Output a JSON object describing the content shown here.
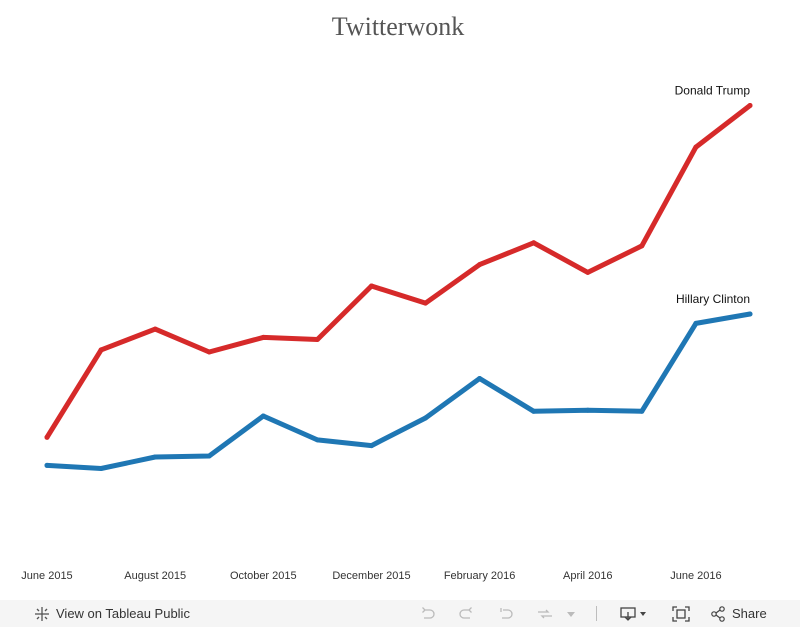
{
  "chart_data": {
    "type": "line",
    "title": "Twitterwonk",
    "xlabel": "",
    "ylabel": "",
    "x_ticks": [
      "June 2015",
      "August 2015",
      "October 2015",
      "December 2015",
      "February 2016",
      "April 2016",
      "June 2016"
    ],
    "x": [
      "2015-06",
      "2015-07",
      "2015-08",
      "2015-09",
      "2015-10",
      "2015-11",
      "2015-12",
      "2016-01",
      "2016-02",
      "2016-03",
      "2016-04",
      "2016-05",
      "2016-06",
      "2016-07"
    ],
    "ylim": [
      0,
      100
    ],
    "y_axis_visible": false,
    "grid": false,
    "legend": "labels at line ends",
    "series": [
      {
        "name": "Donald Trump",
        "color": "#d62a2a",
        "values": [
          23.6,
          40.4,
          44.4,
          40.0,
          42.8,
          42.4,
          52.7,
          49.4,
          56.8,
          61.0,
          55.3,
          60.4,
          79.4,
          87.4
        ]
      },
      {
        "name": "Hillary Clinton",
        "color": "#1f77b4",
        "values": [
          18.2,
          17.6,
          19.8,
          20.0,
          27.7,
          23.1,
          22.0,
          27.3,
          34.9,
          28.6,
          28.8,
          28.6,
          45.5,
          47.3
        ]
      }
    ]
  },
  "toolbar": {
    "view_label": "View on Tableau Public",
    "share_label": "Share",
    "icons": [
      "tableau-logo-icon",
      "undo-icon",
      "redo-icon",
      "revert-icon",
      "refresh-icon",
      "pause-dropdown-icon",
      "download-icon",
      "fullscreen-icon",
      "share-icon"
    ]
  }
}
